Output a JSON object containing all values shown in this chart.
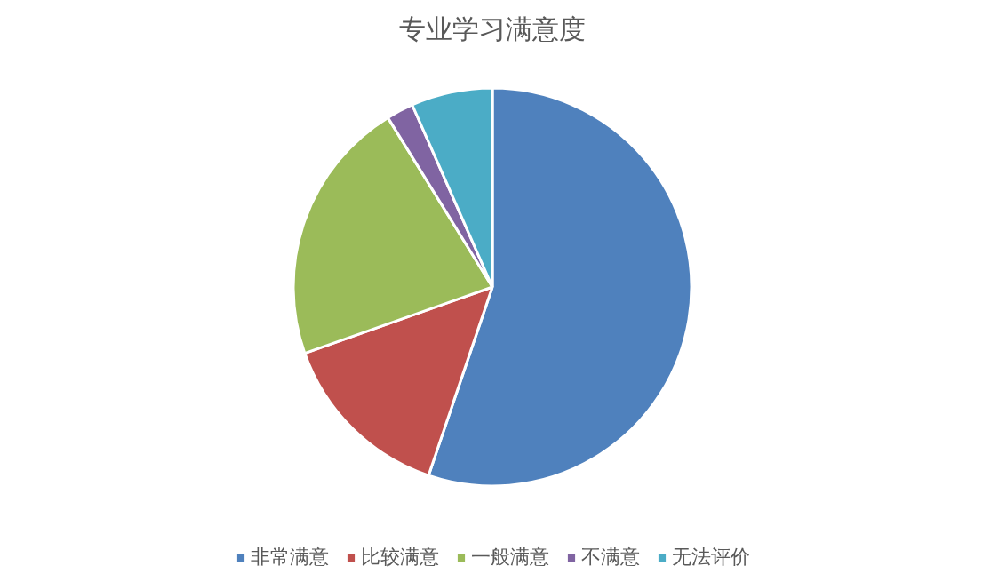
{
  "chart_data": {
    "type": "pie",
    "title": "专业学习满意度",
    "categories": [
      "非常满意",
      "比较满意",
      "一般满意",
      "不满意",
      "无法评价"
    ],
    "values": [
      55.2,
      14.4,
      21.6,
      2.2,
      6.6
    ],
    "colors": [
      "#4f81bd",
      "#c0504d",
      "#9bbb59",
      "#8064a2",
      "#4bacc6"
    ],
    "legend": "bottom"
  }
}
